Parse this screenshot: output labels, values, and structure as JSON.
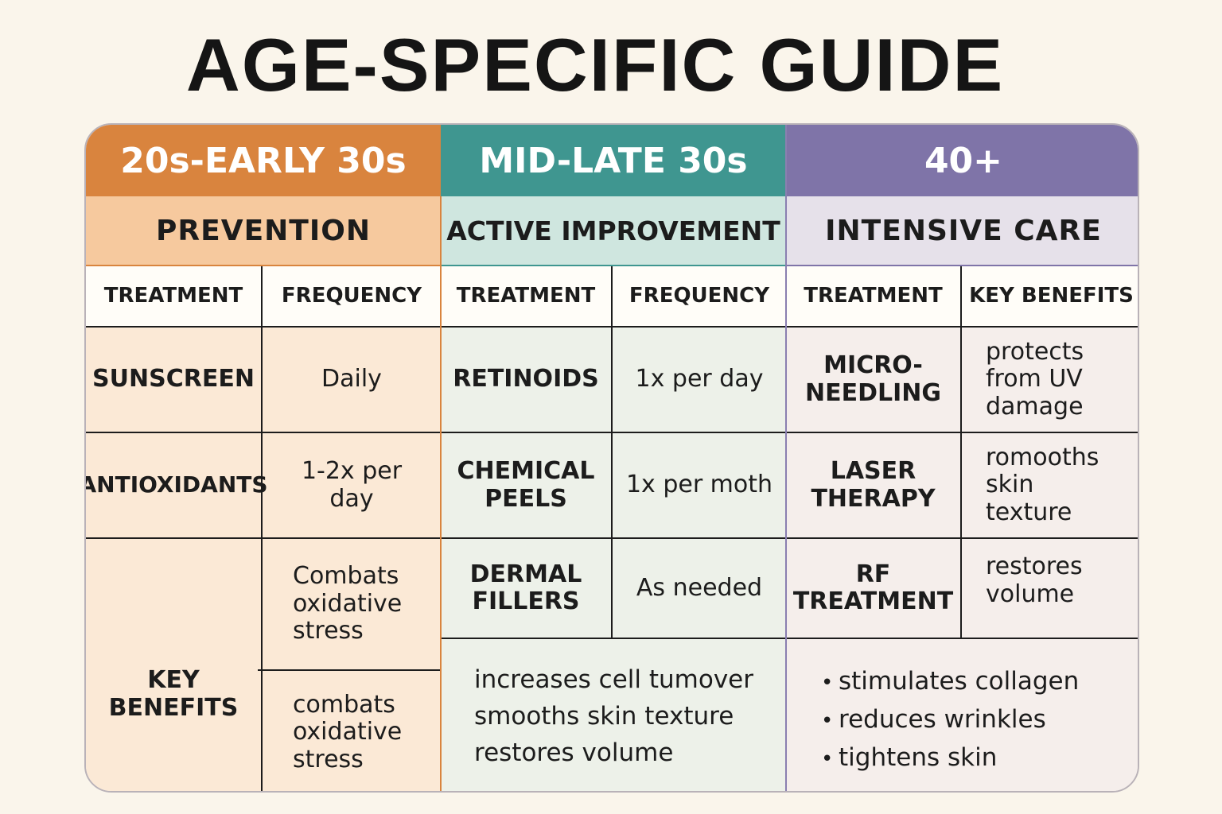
{
  "title": "AGE-SPECIFIC GUIDE",
  "colors": {
    "orange": "#d9843e",
    "teal": "#3f9690",
    "purple": "#7f74a8",
    "orange_light": "#f6c99e",
    "teal_light": "#cfe6df",
    "purple_light": "#e6e1ea"
  },
  "columns": [
    {
      "age": "20s-EARLY 30s",
      "phase": "PREVENTION",
      "headers": [
        "TREATMENT",
        "FREQUENCY"
      ],
      "rows": [
        {
          "treatment": "SUNSCREEN",
          "value": "Daily"
        },
        {
          "treatment": "ANTIOXIDANTS",
          "value": "1-2x per day"
        }
      ],
      "key_benefits_label": "KEY BENEFITS",
      "key_benefits": [
        "Combats oxidative stress",
        "combats oxidative stress"
      ]
    },
    {
      "age": "MID-LATE 30s",
      "phase": "ACTIVE IMPROVEMENT",
      "headers": [
        "TREATMENT",
        "FREQUENCY"
      ],
      "rows": [
        {
          "treatment": "RETINOIDS",
          "value": "1x per day"
        },
        {
          "treatment": "CHEMICAL PEELS",
          "value": "1x per moth"
        },
        {
          "treatment": "DERMAL FILLERS",
          "value": "As needed"
        }
      ],
      "benefits": [
        "increases cell tumover",
        "smooths skin texture",
        "restores volume"
      ]
    },
    {
      "age": "40+",
      "phase": "INTENSIVE CARE",
      "headers": [
        "TREATMENT",
        "KEY BENEFITS"
      ],
      "rows": [
        {
          "treatment": "MICRO-NEEDLING",
          "value": "protects from UV damage"
        },
        {
          "treatment": "LASER THERAPY",
          "value": "romooths skin texture"
        },
        {
          "treatment": "RF TREATMENT",
          "value": "restores volume"
        }
      ],
      "benefits": [
        "stimulates collagen",
        "reduces wrinkles",
        "tightens skin"
      ],
      "bullet": "•"
    }
  ]
}
